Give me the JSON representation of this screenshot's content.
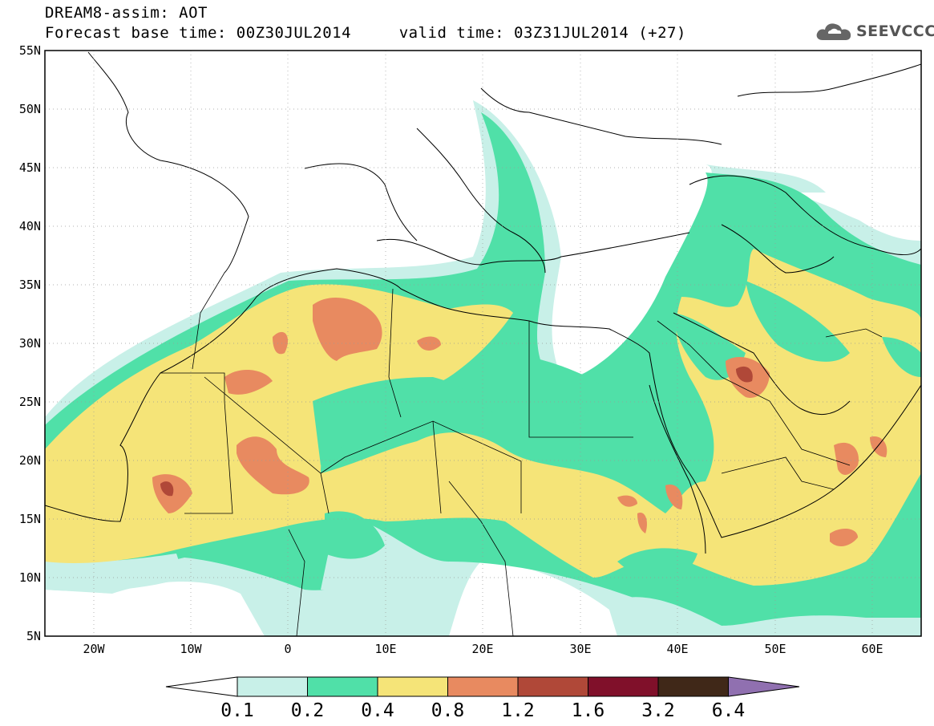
{
  "title_line1": "DREAM8-assim: AOT",
  "title_line2": "Forecast base time: 00Z30JUL2014     valid time: 03Z31JUL2014 (+27)",
  "logo": {
    "icon": "cloud-icon",
    "text": "SEEVCCC"
  },
  "map": {
    "lon_range": [
      -25,
      65
    ],
    "lat_range": [
      5,
      55
    ],
    "lat_labels": [
      "55N",
      "50N",
      "45N",
      "40N",
      "35N",
      "30N",
      "25N",
      "20N",
      "15N",
      "10N",
      "5N"
    ],
    "lon_labels": [
      "20W",
      "10W",
      "0",
      "10E",
      "20E",
      "30E",
      "40E",
      "50E",
      "60E"
    ]
  },
  "colorbar": {
    "labels": [
      "0.1",
      "0.2",
      "0.4",
      "0.8",
      "1.2",
      "1.6",
      "3.2",
      "6.4"
    ],
    "colors": [
      "#ffffff",
      "#c8f0e8",
      "#50e0a8",
      "#f5e478",
      "#e88a60",
      "#b04838",
      "#80102a",
      "#402818",
      "#9070b0"
    ]
  }
}
